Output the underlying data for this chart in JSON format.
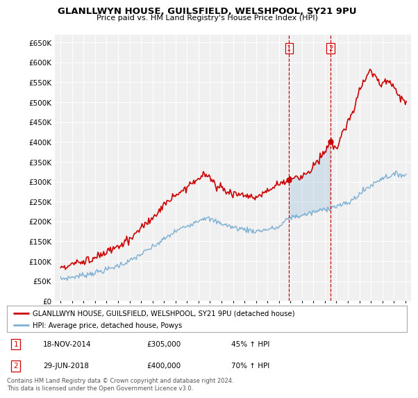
{
  "title": "GLANLLWYN HOUSE, GUILSFIELD, WELSHPOOL, SY21 9PU",
  "subtitle": "Price paid vs. HM Land Registry's House Price Index (HPI)",
  "legend_line1": "GLANLLWYN HOUSE, GUILSFIELD, WELSHPOOL, SY21 9PU (detached house)",
  "legend_line2": "HPI: Average price, detached house, Powys",
  "annotation1": {
    "num": "1",
    "date": "18-NOV-2014",
    "price": "£305,000",
    "pct": "45% ↑ HPI"
  },
  "annotation2": {
    "num": "2",
    "date": "29-JUN-2018",
    "price": "£400,000",
    "pct": "70% ↑ HPI"
  },
  "footer": "Contains HM Land Registry data © Crown copyright and database right 2024.\nThis data is licensed under the Open Government Licence v3.0.",
  "hpi_color": "#7bafd4",
  "property_color": "#cc0000",
  "sale1_x": 2014.88,
  "sale2_x": 2018.49,
  "sale1_y": 305000,
  "sale2_y": 400000,
  "ylim": [
    0,
    670000
  ],
  "xlim": [
    1994.5,
    2025.5
  ],
  "background_color": "#ffffff",
  "plot_bg_color": "#f0f0f0"
}
